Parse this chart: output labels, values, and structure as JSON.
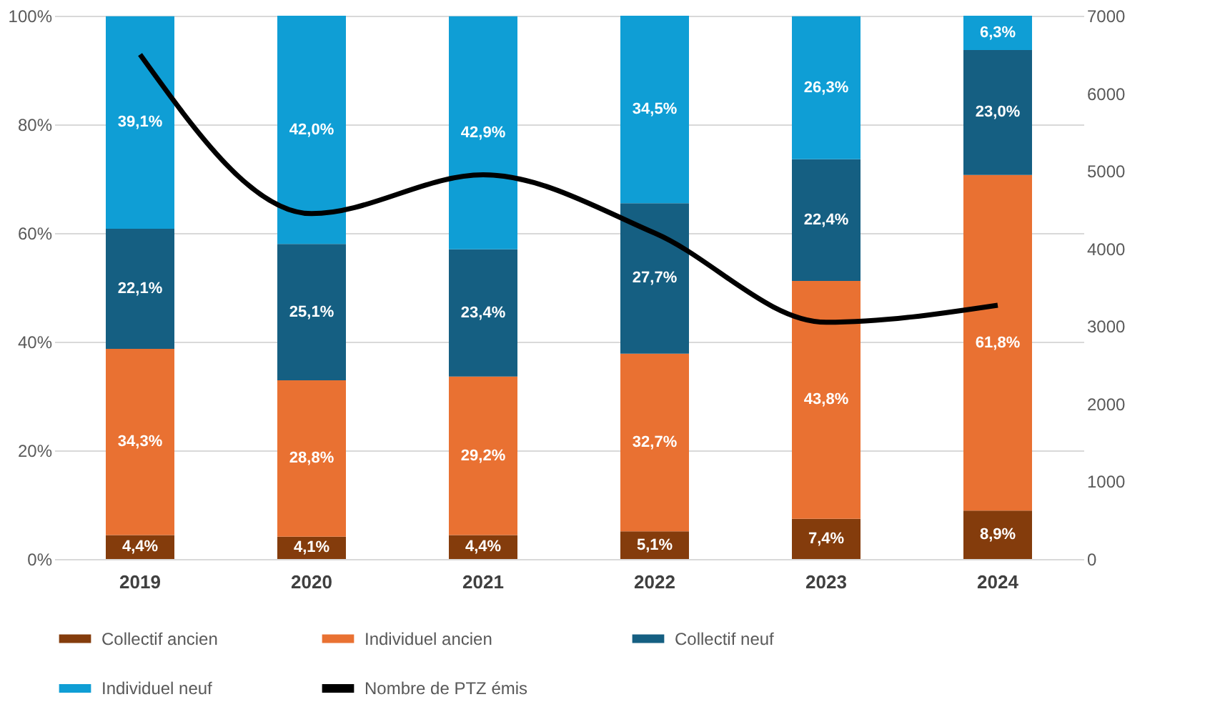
{
  "chart_data": {
    "type": "bar",
    "stacked": true,
    "categories": [
      "2019",
      "2020",
      "2021",
      "2022",
      "2023",
      "2024"
    ],
    "series": [
      {
        "name": "Collectif ancien",
        "type": "bar",
        "color": "#843c0c",
        "values": [
          4.4,
          4.1,
          4.4,
          5.1,
          7.4,
          8.9
        ],
        "value_labels": [
          "4,4%",
          "4,1%",
          "4,4%",
          "5,1%",
          "7,4%",
          "8,9%"
        ]
      },
      {
        "name": "Individuel ancien",
        "type": "bar",
        "color": "#e97132",
        "values": [
          34.3,
          28.8,
          29.2,
          32.7,
          43.8,
          61.8
        ],
        "value_labels": [
          "34,3%",
          "28,8%",
          "29,2%",
          "32,7%",
          "43,8%",
          "61,8%"
        ]
      },
      {
        "name": "Collectif neuf",
        "type": "bar",
        "color": "#155f82",
        "values": [
          22.1,
          25.1,
          23.4,
          27.7,
          22.4,
          23.0
        ],
        "value_labels": [
          "22,1%",
          "25,1%",
          "23,4%",
          "27,7%",
          "22,4%",
          "23,0%"
        ]
      },
      {
        "name": "Individuel neuf",
        "type": "bar",
        "color": "#0f9ed5",
        "values": [
          39.1,
          42.0,
          42.9,
          34.5,
          26.3,
          6.3
        ],
        "value_labels": [
          "39,1%",
          "42,0%",
          "42,9%",
          "34,5%",
          "26,3%",
          "6,3%"
        ]
      },
      {
        "name": "Nombre de PTZ émis",
        "type": "line",
        "axis": "y2",
        "color": "#000000",
        "values": [
          6500,
          4450,
          4950,
          4200,
          3050,
          3270
        ]
      }
    ],
    "ylim": [
      0,
      100
    ],
    "yticks": [
      {
        "value": 0,
        "label": "0%"
      },
      {
        "value": 20,
        "label": "20%"
      },
      {
        "value": 40,
        "label": "40%"
      },
      {
        "value": 60,
        "label": "60%"
      },
      {
        "value": 80,
        "label": "80%"
      },
      {
        "value": 100,
        "label": "100%"
      }
    ],
    "y2lim": [
      0,
      7000
    ],
    "y2ticks": [
      0,
      1000,
      2000,
      3000,
      4000,
      5000,
      6000,
      7000
    ],
    "grid": "y",
    "legend": "bottom"
  }
}
